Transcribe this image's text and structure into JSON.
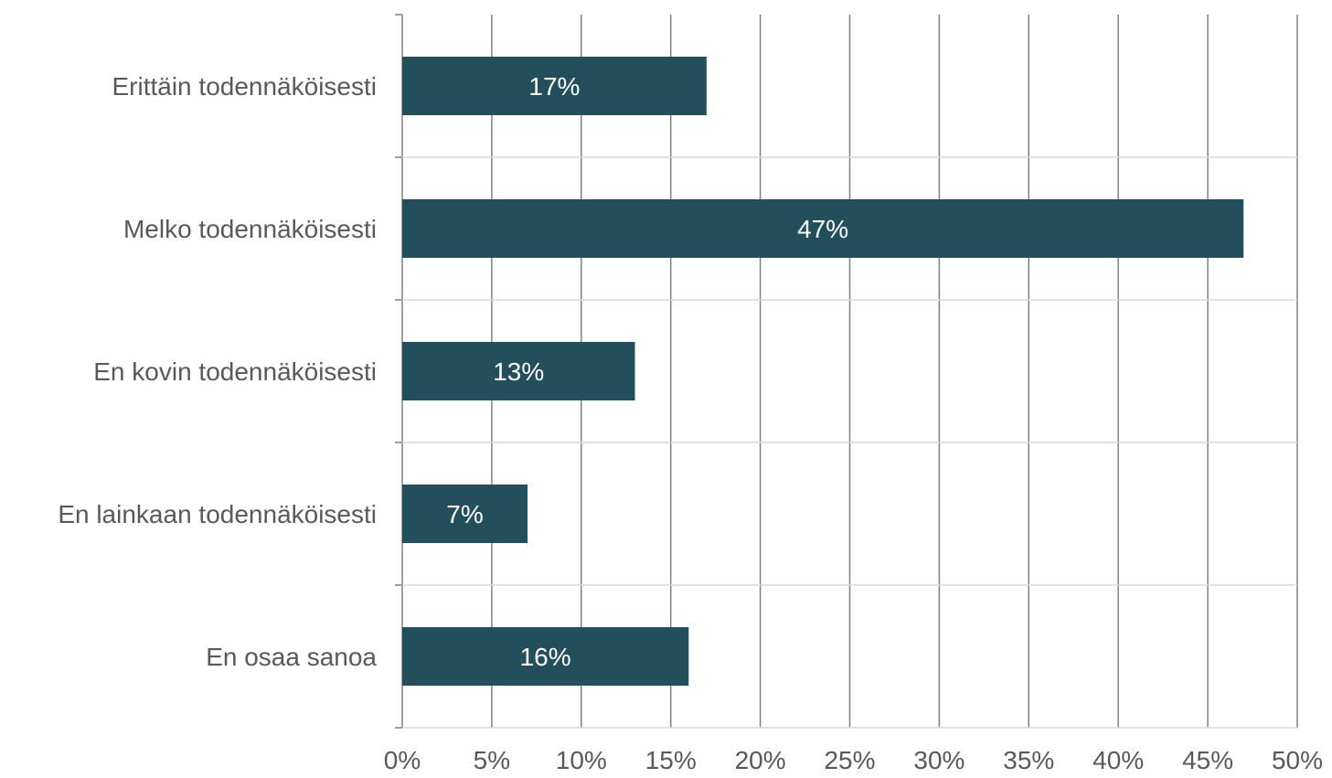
{
  "chart_data": {
    "type": "bar",
    "orientation": "horizontal",
    "categories": [
      "Erittäin todennäköisesti",
      "Melko todennäköisesti",
      "En kovin todennäköisesti",
      "En lainkaan todennäköisesti",
      "En osaa sanoa"
    ],
    "values": [
      17,
      47,
      13,
      7,
      16
    ],
    "data_labels": [
      "17%",
      "47%",
      "13%",
      "7%",
      "16%"
    ],
    "title": "",
    "xlabel": "",
    "ylabel": "",
    "xlim": [
      0,
      50
    ],
    "x_ticks": [
      0,
      5,
      10,
      15,
      20,
      25,
      30,
      35,
      40,
      45,
      50
    ],
    "x_tick_labels": [
      "0%",
      "5%",
      "10%",
      "15%",
      "20%",
      "25%",
      "30%",
      "35%",
      "40%",
      "45%",
      "50%"
    ],
    "grid": true,
    "legend": "none",
    "colors": {
      "bar": "#234e5b",
      "grid": "#808080",
      "text": "#595959",
      "bar_label": "#ffffff"
    }
  }
}
